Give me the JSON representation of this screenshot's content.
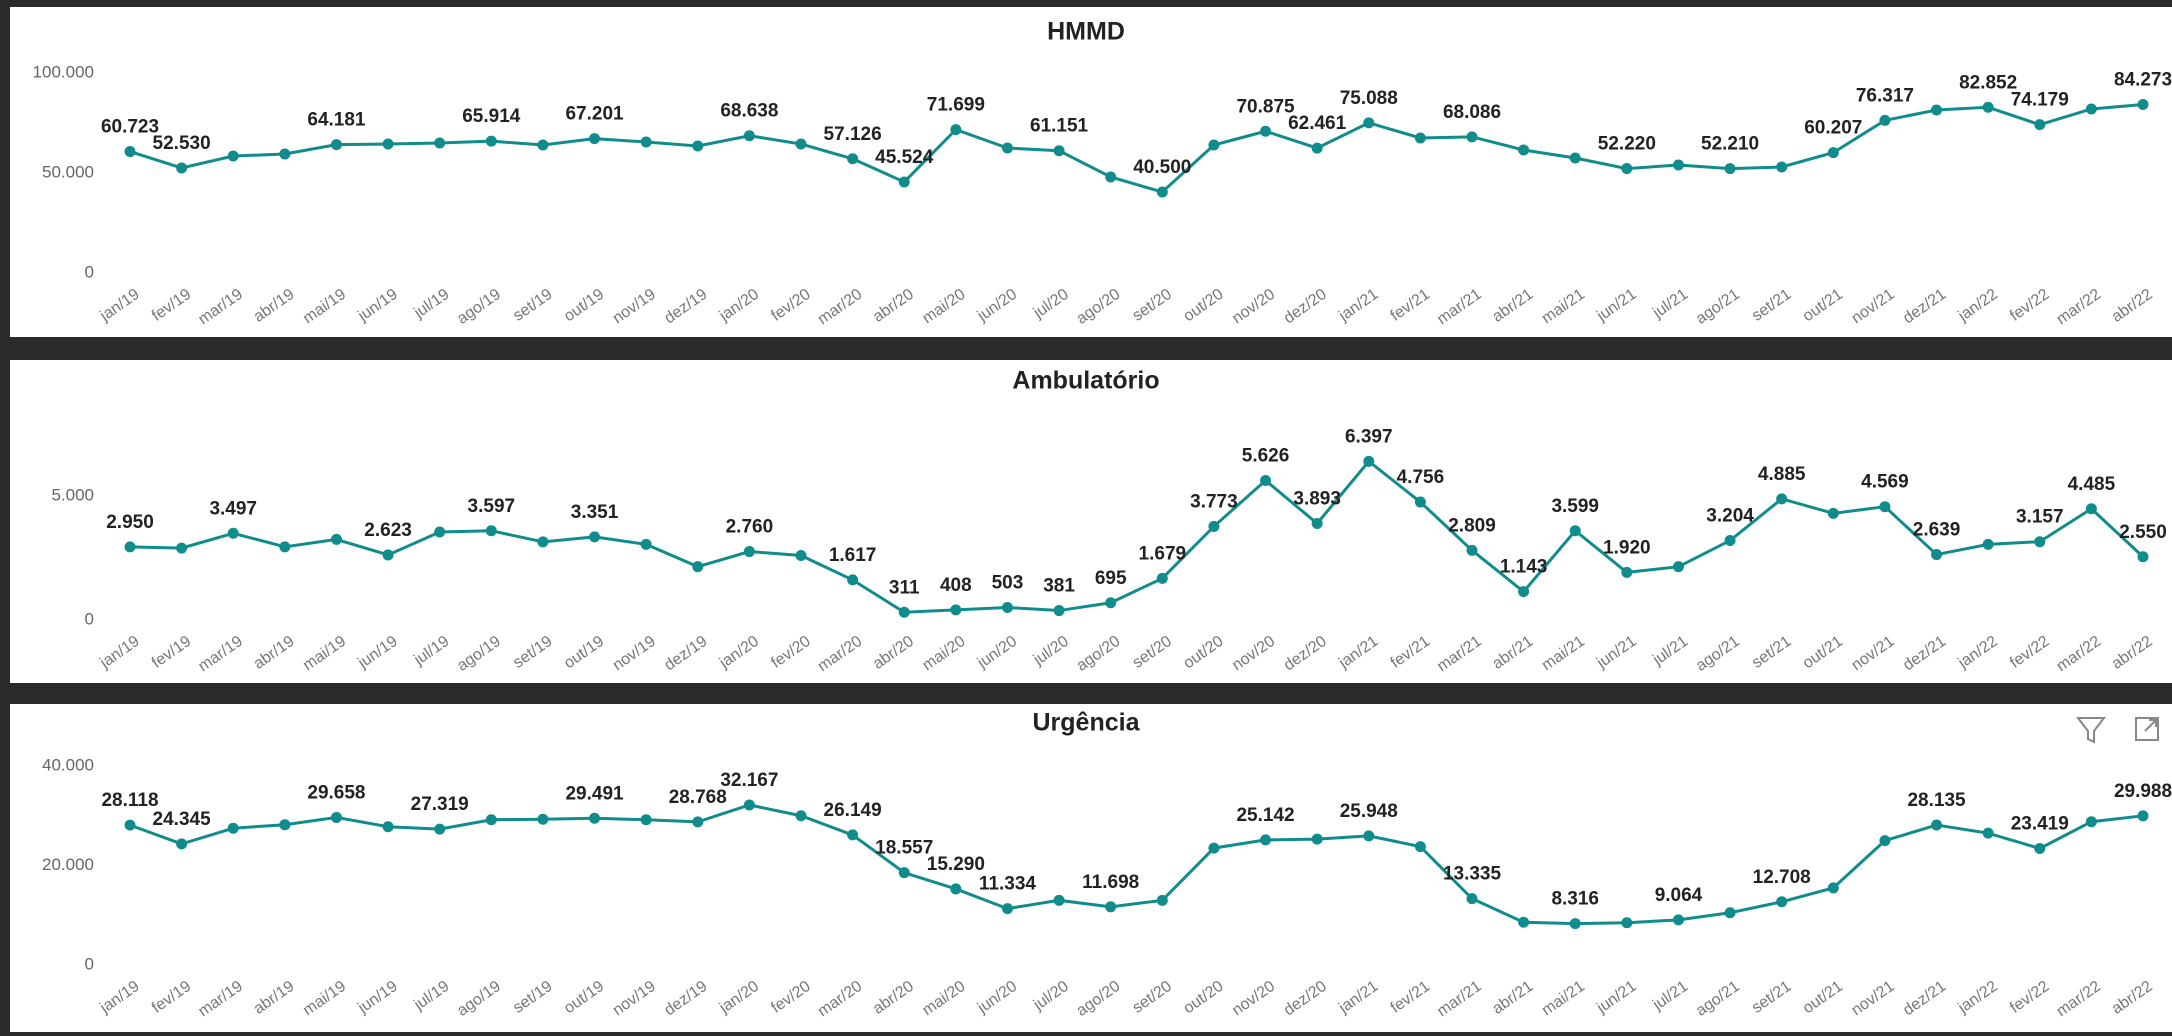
{
  "chart_data": [
    {
      "type": "line",
      "title": "HMMD",
      "color": "#118c8c",
      "grid": false,
      "categories": [
        "jan/19",
        "fev/19",
        "mar/19",
        "abr/19",
        "mai/19",
        "jun/19",
        "jul/19",
        "ago/19",
        "set/19",
        "out/19",
        "nov/19",
        "dez/19",
        "jan/20",
        "fev/20",
        "mar/20",
        "abr/20",
        "mai/20",
        "jun/20",
        "jul/20",
        "ago/20",
        "set/20",
        "out/20",
        "nov/20",
        "dez/20",
        "jan/21",
        "fev/21",
        "mar/21",
        "abr/21",
        "mai/21",
        "jun/21",
        "jul/21",
        "ago/21",
        "set/21",
        "out/21",
        "nov/21",
        "dez/21",
        "jan/22",
        "fev/22",
        "mar/22",
        "abr/22"
      ],
      "values": [
        60723,
        52530,
        58500,
        59500,
        64181,
        64500,
        65000,
        65914,
        64000,
        67201,
        65500,
        63500,
        68638,
        64500,
        57126,
        45524,
        71699,
        62500,
        61151,
        48000,
        40500,
        64000,
        70875,
        62461,
        75088,
        67500,
        68086,
        61500,
        57500,
        52220,
        54000,
        52210,
        53000,
        60207,
        76317,
        81500,
        82852,
        74179,
        82000,
        84273
      ],
      "value_labels": [
        "60.723",
        "52.530",
        null,
        null,
        "64.181",
        null,
        null,
        "65.914",
        null,
        "67.201",
        null,
        null,
        "68.638",
        null,
        "57.126",
        "45.524",
        "71.699",
        null,
        "61.151",
        null,
        "40.500",
        null,
        "70.875",
        "62.461",
        "75.088",
        null,
        "68.086",
        null,
        null,
        "52.220",
        null,
        "52.210",
        null,
        "60.207",
        "76.317",
        null,
        "82.852",
        "74.179",
        null,
        "84.273"
      ],
      "ylim": [
        0,
        100000
      ],
      "yticks": [
        0,
        {
          "value": 50000,
          "label": "50.000"
        },
        {
          "value": 100000,
          "label": "100.000"
        }
      ]
    },
    {
      "type": "line",
      "title": "Ambulatório",
      "color": "#118c8c",
      "grid": false,
      "categories": [
        "jan/19",
        "fev/19",
        "mar/19",
        "abr/19",
        "mai/19",
        "jun/19",
        "jul/19",
        "ago/19",
        "set/19",
        "out/19",
        "nov/19",
        "dez/19",
        "jan/20",
        "fev/20",
        "mar/20",
        "abr/20",
        "mai/20",
        "jun/20",
        "jul/20",
        "ago/20",
        "set/20",
        "out/20",
        "nov/20",
        "dez/20",
        "jan/21",
        "fev/21",
        "mar/21",
        "abr/21",
        "mai/21",
        "jun/21",
        "jul/21",
        "ago/21",
        "set/21",
        "out/21",
        "nov/21",
        "dez/21",
        "jan/22",
        "fev/22",
        "mar/22",
        "abr/22"
      ],
      "values": [
        2950,
        2900,
        3497,
        2950,
        3250,
        2623,
        3550,
        3597,
        3150,
        3351,
        3050,
        2150,
        2760,
        2600,
        1617,
        311,
        408,
        503,
        381,
        695,
        1679,
        3773,
        5626,
        3893,
        6397,
        4756,
        2809,
        1143,
        3599,
        1920,
        2150,
        3204,
        4885,
        4300,
        4569,
        2639,
        3050,
        3157,
        4485,
        2550
      ],
      "value_labels": [
        "2.950",
        null,
        "3.497",
        null,
        null,
        "2.623",
        null,
        "3.597",
        null,
        "3.351",
        null,
        null,
        "2.760",
        null,
        "1.617",
        "311",
        "408",
        "503",
        "381",
        "695",
        "1.679",
        "3.773",
        "5.626",
        "3.893",
        "6.397",
        "4.756",
        "2.809",
        "1.143",
        "3.599",
        "1.920",
        null,
        "3.204",
        "4.885",
        null,
        "4.569",
        "2.639",
        null,
        "3.157",
        "4.485",
        "2.550"
      ],
      "ylim": [
        0,
        7000
      ],
      "yticks": [
        0,
        {
          "value": 5000,
          "label": "5.000"
        }
      ]
    },
    {
      "type": "line",
      "title": "Urgência",
      "color": "#118c8c",
      "grid": false,
      "categories": [
        "jan/19",
        "fev/19",
        "mar/19",
        "abr/19",
        "mai/19",
        "jun/19",
        "jul/19",
        "ago/19",
        "set/19",
        "out/19",
        "nov/19",
        "dez/19",
        "jan/20",
        "fev/20",
        "mar/20",
        "abr/20",
        "mai/20",
        "jun/20",
        "jul/20",
        "ago/20",
        "set/20",
        "out/20",
        "nov/20",
        "dez/20",
        "jan/21",
        "fev/21",
        "mar/21",
        "abr/21",
        "mai/21",
        "jun/21",
        "jul/21",
        "ago/21",
        "set/21",
        "out/21",
        "nov/21",
        "dez/21",
        "jan/22",
        "fev/22",
        "mar/22",
        "abr/22"
      ],
      "values": [
        28118,
        24345,
        27500,
        28200,
        29658,
        27800,
        27319,
        29200,
        29300,
        29491,
        29200,
        28768,
        32167,
        30000,
        26149,
        18557,
        15290,
        11334,
        13000,
        11698,
        13000,
        23500,
        25142,
        25300,
        25948,
        23800,
        13335,
        8600,
        8316,
        8500,
        9064,
        10500,
        12708,
        15500,
        25000,
        28135,
        26500,
        23419,
        28800,
        29988
      ],
      "value_labels": [
        "28.118",
        "24.345",
        null,
        null,
        "29.658",
        null,
        "27.319",
        null,
        null,
        "29.491",
        null,
        "28.768",
        "32.167",
        null,
        "26.149",
        "18.557",
        "15.290",
        "11.334",
        null,
        "11.698",
        null,
        null,
        "25.142",
        null,
        "25.948",
        null,
        "13.335",
        null,
        "8.316",
        null,
        "9.064",
        null,
        "12.708",
        null,
        null,
        "28.135",
        null,
        "23.419",
        null,
        "29.988"
      ],
      "ylim": [
        0,
        40000
      ],
      "yticks": [
        0,
        {
          "value": 20000,
          "label": "20.000"
        },
        {
          "value": 40000,
          "label": "40.000"
        }
      ]
    }
  ]
}
